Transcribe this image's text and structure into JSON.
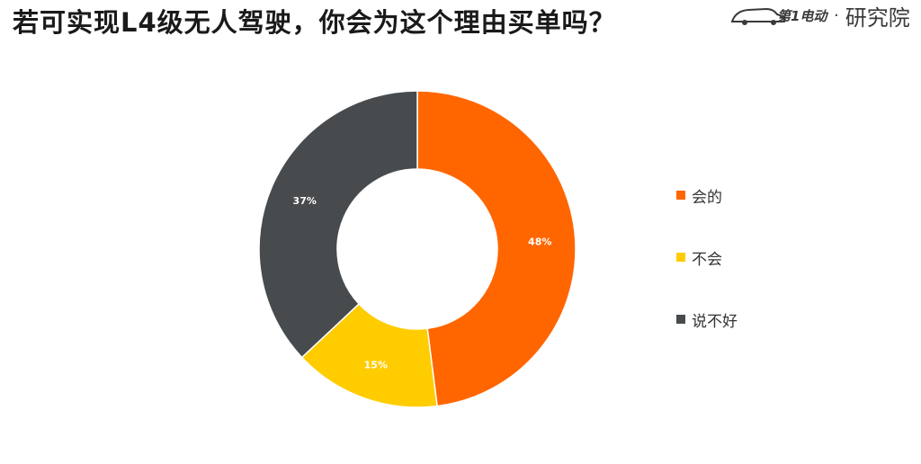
{
  "title": "若可实现L4级无人驾驶，你会为这个理由买单吗？",
  "brand": {
    "logo_icon": "first-electric-car-logo",
    "logo_text": "第1电动",
    "dot": "·",
    "name": "研究院"
  },
  "chart_data": {
    "type": "pie",
    "donut": true,
    "labels": [
      "会的",
      "不会",
      "说不好"
    ],
    "values": [
      48,
      15,
      37
    ],
    "data_labels": [
      "48%",
      "15%",
      "37%"
    ],
    "colors": [
      "#FF6600",
      "#FFCC00",
      "#474B4E"
    ],
    "title": "若可实现L4级无人驾驶，你会为这个理由买单吗？",
    "legend_position": "right",
    "start_angle": "12 o'clock",
    "direction": "clockwise"
  }
}
